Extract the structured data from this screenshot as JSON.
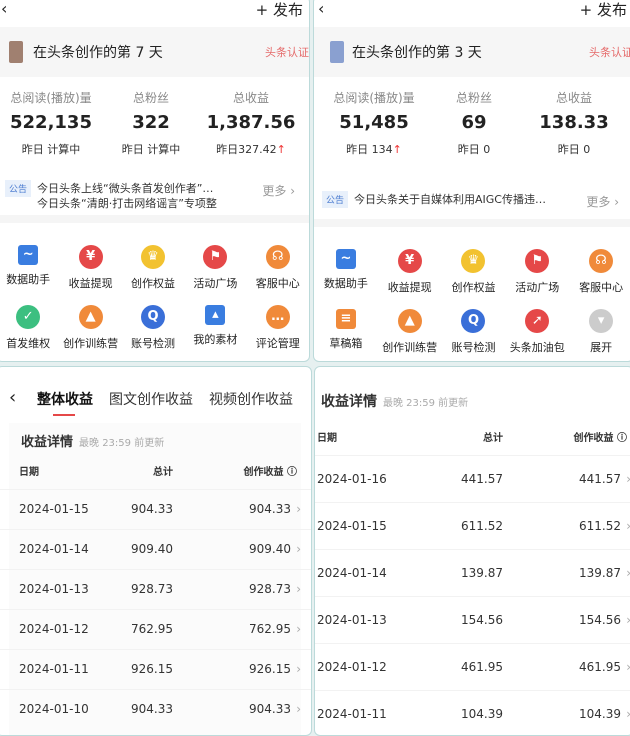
{
  "panels_top": [
    {
      "publish": "+ 发布",
      "title": "在头条创作的第 7 天",
      "badge": "头条认证",
      "avatar_color": "#a08070",
      "stats": [
        {
          "label": "总阅读(播放)量",
          "value": "522,135",
          "yesterday": "昨日 计算中",
          "up": ""
        },
        {
          "label": "总粉丝",
          "value": "322",
          "yesterday": "昨日 计算中",
          "up": ""
        },
        {
          "label": "总收益",
          "value": "1,387.56",
          "yesterday": "昨日327.42",
          "up": "↑"
        }
      ],
      "notice_tag": "公告",
      "notice": "今日头条上线“微头条首发创作者”…",
      "notice2": "今日头条“清朗·打击网络谣言”专项整",
      "more": "更多 ›",
      "icons": [
        {
          "label": "数据助手",
          "icon": "chart-icon",
          "color": "#3a7de0",
          "glyph": "~",
          "sq": true
        },
        {
          "label": "收益提现",
          "icon": "yuan-icon",
          "color": "#e54848",
          "glyph": "¥"
        },
        {
          "label": "创作权益",
          "icon": "crown-icon",
          "color": "#f2c230",
          "glyph": "♛"
        },
        {
          "label": "活动广场",
          "icon": "flag-icon",
          "color": "#e54848",
          "glyph": "⚑"
        },
        {
          "label": "客服中心",
          "icon": "headset-icon",
          "color": "#f08a3a",
          "glyph": "☊"
        },
        {
          "label": "首发维权",
          "icon": "shield-check-icon",
          "color": "#3cbf80",
          "glyph": "✓"
        },
        {
          "label": "创作训练营",
          "icon": "graduation-cap-icon",
          "color": "#f08a3a",
          "glyph": "▲"
        },
        {
          "label": "账号检测",
          "icon": "search-shield-icon",
          "color": "#3a6fd8",
          "glyph": "Q"
        },
        {
          "label": "我的素材",
          "icon": "image-icon",
          "color": "#3a7de0",
          "glyph": "▴",
          "sq": true
        },
        {
          "label": "评论管理",
          "icon": "comment-icon",
          "color": "#f08a3a",
          "glyph": "…"
        }
      ]
    },
    {
      "publish": "+ 发布",
      "title": "在头条创作的第 3 天",
      "badge": "头条认证",
      "avatar_color": "#8aa0d0",
      "stats": [
        {
          "label": "总阅读(播放)量",
          "value": "51,485",
          "yesterday": "昨日 134",
          "up": "↑"
        },
        {
          "label": "总粉丝",
          "value": "69",
          "yesterday": "昨日 0",
          "up": ""
        },
        {
          "label": "总收益",
          "value": "138.33",
          "yesterday": "昨日 0",
          "up": ""
        }
      ],
      "notice_tag": "公告",
      "notice": "今日头条关于自媒体利用AIGC传播违…",
      "notice2": "",
      "more": "更多 ›",
      "icons": [
        {
          "label": "数据助手",
          "icon": "chart-icon",
          "color": "#3a7de0",
          "glyph": "~",
          "sq": true
        },
        {
          "label": "收益提现",
          "icon": "yuan-icon",
          "color": "#e54848",
          "glyph": "¥"
        },
        {
          "label": "创作权益",
          "icon": "crown-icon",
          "color": "#f2c230",
          "glyph": "♛"
        },
        {
          "label": "活动广场",
          "icon": "flag-icon",
          "color": "#e54848",
          "glyph": "⚑"
        },
        {
          "label": "客服中心",
          "icon": "headset-icon",
          "color": "#f08a3a",
          "glyph": "☊"
        },
        {
          "label": "草稿箱",
          "icon": "draft-icon",
          "color": "#f08a3a",
          "glyph": "≡",
          "sq": true
        },
        {
          "label": "创作训练营",
          "icon": "graduation-cap-icon",
          "color": "#f08a3a",
          "glyph": "▲"
        },
        {
          "label": "账号检测",
          "icon": "search-shield-icon",
          "color": "#3a6fd8",
          "glyph": "Q"
        },
        {
          "label": "头条加油包",
          "icon": "rocket-icon",
          "color": "#e54848",
          "glyph": "➚"
        },
        {
          "label": "展开",
          "icon": "expand-icon",
          "color": "#cccccc",
          "glyph": "▾"
        }
      ]
    }
  ],
  "left_bottom": {
    "tabs": [
      "整体收益",
      "图文创作收益",
      "视频创作收益"
    ],
    "title": "收益详情",
    "subtitle": "最晚 23:59 前更新",
    "headers": [
      "日期",
      "总计",
      "创作收益 ⓘ"
    ],
    "rows": [
      [
        "2024-01-15",
        "904.33",
        "904.33"
      ],
      [
        "2024-01-14",
        "909.40",
        "909.40"
      ],
      [
        "2024-01-13",
        "928.73",
        "928.73"
      ],
      [
        "2024-01-12",
        "762.95",
        "762.95"
      ],
      [
        "2024-01-11",
        "926.15",
        "926.15"
      ],
      [
        "2024-01-10",
        "904.33",
        "904.33"
      ]
    ]
  },
  "right_bottom": {
    "title": "收益详情",
    "subtitle": "最晚 23:59 前更新",
    "headers": [
      "日期",
      "总计",
      "创作收益 ⓘ"
    ],
    "rows": [
      [
        "2024-01-16",
        "441.57",
        "441.57"
      ],
      [
        "2024-01-15",
        "611.52",
        "611.52"
      ],
      [
        "2024-01-14",
        "139.87",
        "139.87"
      ],
      [
        "2024-01-13",
        "154.56",
        "154.56"
      ],
      [
        "2024-01-12",
        "461.95",
        "461.95"
      ],
      [
        "2024-01-11",
        "104.39",
        "104.39"
      ]
    ]
  }
}
